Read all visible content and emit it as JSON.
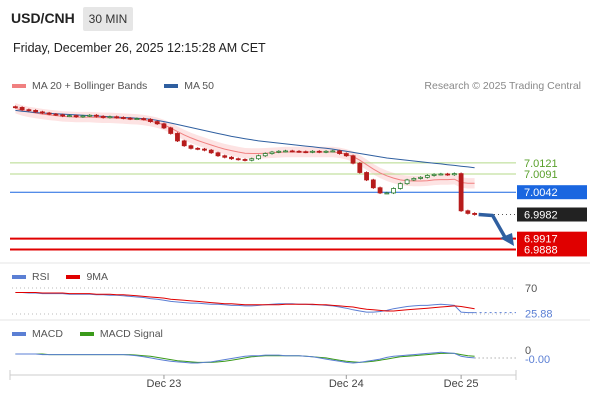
{
  "header": {
    "symbol": "USD/CNH",
    "interval": "30 MIN",
    "datetime": "Friday, December 26, 2025 12:15:28 AM CET"
  },
  "legend_main": [
    {
      "label": "MA 20 + Bollinger Bands",
      "color": "#f08080"
    },
    {
      "label": "MA 50",
      "color": "#2f5fa0"
    }
  ],
  "credit": "Research © 2025 Trading Central",
  "legend_rsi": [
    {
      "label": "RSI",
      "color": "#5b7fd4"
    },
    {
      "label": "9MA",
      "color": "#e00000"
    }
  ],
  "legend_macd": [
    {
      "label": "MACD",
      "color": "#5b7fd4"
    },
    {
      "label": "MACD Signal",
      "color": "#3a9a1a"
    }
  ],
  "colors": {
    "bull": "#2e7d32",
    "bear": "#b71c1c",
    "band_fill": "#fde3e3",
    "ma20": "#f08080",
    "ma50": "#2f5fa0",
    "resistance": "#b5d98a",
    "pivot": "#1a66e0",
    "support": "#e00000",
    "current": "#222222",
    "arrow": "#2f5fa0"
  },
  "chart_data": [
    {
      "type": "candlestick",
      "x_labels": [
        "Dec 23",
        "Dec 24",
        "Dec 25"
      ],
      "price_levels": [
        {
          "value": 7.0121,
          "label": "7.0121",
          "kind": "resistance"
        },
        {
          "value": 7.0091,
          "label": "7.0091",
          "kind": "resistance"
        },
        {
          "value": 7.0042,
          "label": "7.0042",
          "kind": "pivot"
        },
        {
          "value": 6.9982,
          "label": "6.9982",
          "kind": "current"
        },
        {
          "value": 6.9917,
          "label": "6.9917",
          "kind": "support"
        },
        {
          "value": 6.9888,
          "label": "6.9888",
          "kind": "support"
        }
      ],
      "close": [
        7.027,
        7.0264,
        7.0262,
        7.0258,
        7.0255,
        7.0252,
        7.025,
        7.0247,
        7.0248,
        7.0245,
        7.0247,
        7.0249,
        7.0246,
        7.0243,
        7.0245,
        7.0243,
        7.0241,
        7.0239,
        7.024,
        7.0238,
        7.0232,
        7.0226,
        7.0215,
        7.02,
        7.018,
        7.0167,
        7.016,
        7.0158,
        7.0155,
        7.0148,
        7.014,
        7.0136,
        7.0132,
        7.013,
        7.0128,
        7.0132,
        7.014,
        7.0146,
        7.015,
        7.0152,
        7.0153,
        7.0152,
        7.0151,
        7.015,
        7.0152,
        7.015,
        7.0152,
        7.0153,
        7.0146,
        7.014,
        7.012,
        7.0095,
        7.0075,
        7.0054,
        7.004,
        7.004,
        7.0052,
        7.0065,
        7.0075,
        7.0079,
        7.0082,
        7.0087,
        7.009,
        7.0091,
        7.0089,
        7.0092,
        6.9992,
        6.9985,
        6.9982
      ],
      "ma20": [
        7.0268,
        7.0262,
        7.0258,
        7.0255,
        7.0252,
        7.025,
        7.0248,
        7.0246,
        7.0245,
        7.0244,
        7.0244,
        7.0244,
        7.0243,
        7.0242,
        7.0242,
        7.0241,
        7.024,
        7.0239,
        7.0238,
        7.0236,
        7.0233,
        7.0229,
        7.0223,
        7.0215,
        7.0205,
        7.0196,
        7.0188,
        7.0181,
        7.0175,
        7.0169,
        7.0163,
        7.0158,
        7.0154,
        7.015,
        7.0147,
        7.0146,
        7.0146,
        7.0147,
        7.0148,
        7.0149,
        7.015,
        7.015,
        7.015,
        7.015,
        7.015,
        7.015,
        7.015,
        7.015,
        7.0148,
        7.0144,
        7.0138,
        7.0128,
        7.0116,
        7.0104,
        7.0094,
        7.0086,
        7.008,
        7.0075,
        7.0073,
        7.0072,
        7.0072,
        7.0073,
        7.0075,
        7.0076,
        7.0076,
        7.0077,
        7.0068,
        7.0066,
        7.0066
      ],
      "ma50": [
        7.0262,
        7.026,
        7.0258,
        7.0256,
        7.0255,
        7.0254,
        7.0253,
        7.0252,
        7.0251,
        7.025,
        7.0249,
        7.0248,
        7.0247,
        7.0246,
        7.0245,
        7.0244,
        7.0243,
        7.0242,
        7.0241,
        7.024,
        7.0238,
        7.0235,
        7.0232,
        7.0228,
        7.0224,
        7.022,
        7.0216,
        7.0212,
        7.0208,
        7.0204,
        7.02,
        7.0196,
        7.0192,
        7.0189,
        7.0186,
        7.0183,
        7.018,
        7.0178,
        7.0176,
        7.0174,
        7.0172,
        7.017,
        7.0168,
        7.0166,
        7.0164,
        7.0162,
        7.016,
        7.0158,
        7.0155,
        7.0152,
        7.0149,
        7.0146,
        7.0143,
        7.014,
        7.0137,
        7.0134,
        7.0132,
        7.013,
        7.0128,
        7.0126,
        7.0124,
        7.0122,
        7.012,
        7.0118,
        7.0116,
        7.0114,
        7.0112,
        7.011,
        7.0108
      ],
      "bollinger_band_width": 0.0014,
      "y_range": [
        6.9865,
        7.029
      ]
    },
    {
      "type": "line",
      "name": "RSI",
      "levels": [
        {
          "value": 70,
          "label": "70"
        }
      ],
      "last_value_label": "25.88",
      "rsi": [
        62,
        62,
        61,
        61,
        60,
        60,
        60,
        60,
        59,
        59,
        59,
        59,
        58,
        58,
        57,
        57,
        56,
        55,
        54,
        53,
        51,
        50,
        48,
        46,
        45,
        44,
        43,
        43,
        42,
        41,
        41,
        40,
        39,
        39,
        38,
        38,
        39,
        40,
        41,
        42,
        42,
        42,
        41,
        41,
        40,
        40,
        39,
        38,
        36,
        34,
        31,
        29,
        27,
        27,
        28,
        30,
        33,
        35,
        37,
        38,
        39,
        39,
        40,
        41,
        40,
        39,
        27,
        26,
        26
      ],
      "ma9": [
        62,
        62,
        62,
        62,
        61,
        61,
        61,
        61,
        60,
        60,
        60,
        60,
        59,
        59,
        59,
        58,
        58,
        57,
        56,
        55,
        54,
        53,
        52,
        50,
        49,
        48,
        47,
        46,
        45,
        44,
        43,
        42,
        42,
        41,
        40,
        40,
        40,
        40,
        40,
        40,
        41,
        41,
        41,
        41,
        41,
        40,
        40,
        39,
        38,
        37,
        36,
        34,
        32,
        31,
        30,
        29,
        29,
        30,
        31,
        32,
        33,
        34,
        35,
        36,
        37,
        38,
        37,
        35,
        33
      ],
      "y_range": [
        0,
        100
      ]
    },
    {
      "type": "line",
      "name": "MACD",
      "levels": [
        {
          "value": 0,
          "label": "0"
        }
      ],
      "last_value_label": "-0.00",
      "macd": [
        0.0,
        0.0,
        0.0,
        0.0,
        -0.1,
        -0.1,
        -0.1,
        -0.1,
        -0.1,
        -0.1,
        -0.1,
        -0.1,
        -0.1,
        -0.1,
        -0.1,
        -0.1,
        -0.1,
        -0.2,
        -0.3,
        -0.5,
        -0.7,
        -0.9,
        -1.1,
        -1.3,
        -1.4,
        -1.5,
        -1.6,
        -1.6,
        -1.5,
        -1.4,
        -1.2,
        -1.0,
        -0.8,
        -0.6,
        -0.4,
        -0.3,
        -0.3,
        -0.2,
        -0.2,
        -0.2,
        -0.3,
        -0.3,
        -0.3,
        -0.4,
        -0.5,
        -0.7,
        -0.9,
        -1.1,
        -1.3,
        -1.5,
        -1.6,
        -1.5,
        -1.3,
        -1.1,
        -0.9,
        -0.6,
        -0.4,
        -0.3,
        -0.2,
        -0.1,
        0.0,
        0.1,
        0.2,
        0.3,
        0.2,
        0.1,
        -0.4,
        -0.6,
        -0.7
      ],
      "signal": [
        0.0,
        0.0,
        0.0,
        0.0,
        0.0,
        -0.1,
        -0.1,
        -0.1,
        -0.1,
        -0.1,
        -0.1,
        -0.1,
        -0.1,
        -0.1,
        -0.1,
        -0.1,
        -0.1,
        -0.1,
        -0.2,
        -0.3,
        -0.4,
        -0.6,
        -0.8,
        -1.0,
        -1.2,
        -1.3,
        -1.4,
        -1.5,
        -1.5,
        -1.5,
        -1.4,
        -1.3,
        -1.1,
        -0.9,
        -0.7,
        -0.5,
        -0.4,
        -0.3,
        -0.3,
        -0.3,
        -0.3,
        -0.3,
        -0.3,
        -0.4,
        -0.5,
        -0.6,
        -0.7,
        -0.9,
        -1.1,
        -1.3,
        -1.4,
        -1.5,
        -1.4,
        -1.3,
        -1.1,
        -0.9,
        -0.7,
        -0.5,
        -0.4,
        -0.3,
        -0.2,
        -0.1,
        0.0,
        0.1,
        0.1,
        0.1,
        -0.1,
        -0.3,
        -0.4
      ],
      "y_range": [
        -3.2,
        1.6
      ]
    }
  ]
}
